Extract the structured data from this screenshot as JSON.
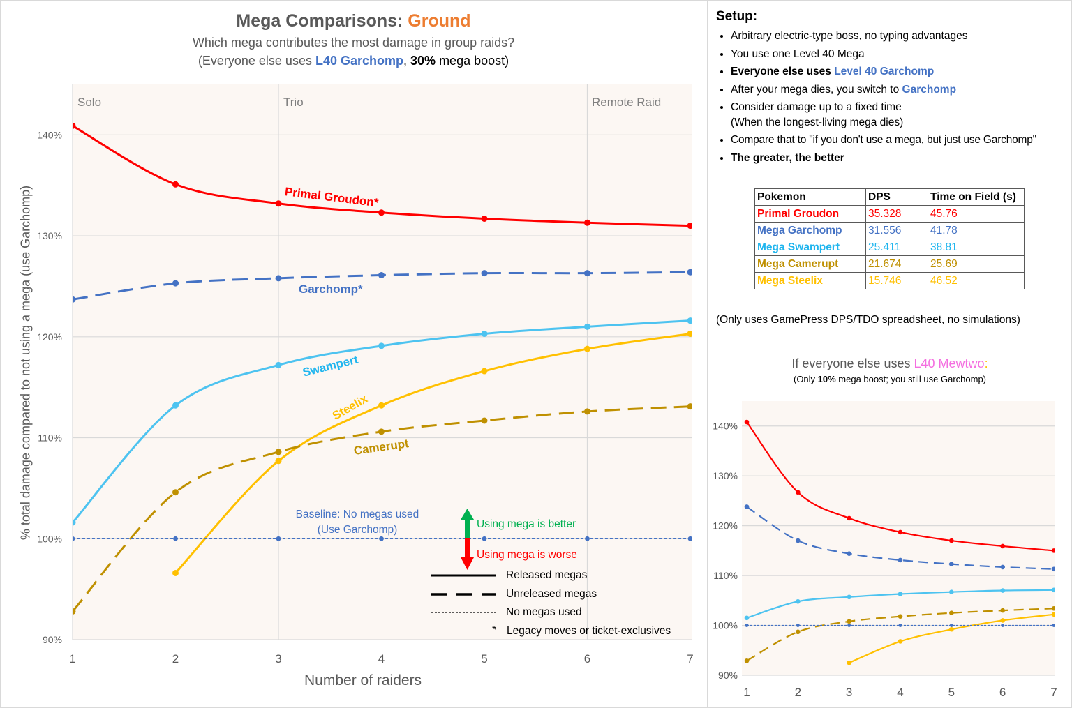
{
  "main": {
    "title_prefix": "Mega Comparisons: ",
    "title_type": "Ground",
    "subtitle": "Which mega contributes the most damage in group raids?",
    "subtitle2_a": "(Everyone else uses ",
    "subtitle2_b": "L40 Garchomp",
    "subtitle2_c": ", ",
    "subtitle2_d": "30%",
    "subtitle2_e": " mega boost)",
    "regions": [
      "Solo",
      "Trio",
      "Remote Raid"
    ],
    "baseline_note_1": "Baseline: No megas used",
    "baseline_note_2": "(Use Garchomp)",
    "better_label": "Using mega is better",
    "worse_label": "Using mega is worse",
    "legend": {
      "released": "Released megas",
      "unreleased": "Unreleased megas",
      "none": "No megas used",
      "asterisk": "*",
      "asterisk_note": "Legacy moves or ticket-exclusives"
    }
  },
  "setup": {
    "heading": "Setup:",
    "bullets": [
      "Arbitrary electric-type boss, no typing advantages",
      "You use one Level 40 Mega",
      "Everyone else uses ",
      "After your mega dies, you switch to ",
      "Consider damage up to a fixed time",
      "Compare that to \"if you don't use a mega, but just use Garchomp\"",
      "The greater, the better"
    ],
    "bullet3_highlight": "Level 40 Garchomp",
    "bullet4_highlight": "Garchomp",
    "bullet5_cont": "(When the longest-living mega dies)",
    "table": {
      "headers": [
        "Pokemon",
        "DPS",
        "Time on Field (s)"
      ],
      "rows": [
        {
          "name": "Primal Groudon",
          "dps": "35.328",
          "time": "45.76",
          "color": "#FF0000"
        },
        {
          "name": "Mega Garchomp",
          "dps": "31.556",
          "time": "41.78",
          "color": "#4472C4"
        },
        {
          "name": "Mega Swampert",
          "dps": "25.411",
          "time": "38.81",
          "color": "#1FB5EE"
        },
        {
          "name": "Mega Camerupt",
          "dps": "21.674",
          "time": "25.69",
          "color": "#BF9000"
        },
        {
          "name": "Mega Steelix",
          "dps": "15.746",
          "time": "46.52",
          "color": "#FFC000"
        }
      ]
    },
    "note": "(Only uses GamePress DPS/TDO spreadsheet, no simulations)"
  },
  "side": {
    "title_a": "If everyone else uses ",
    "title_b": "L40 Mewtwo",
    "title_c": ":",
    "sub_a": "(Only ",
    "sub_b": "10%",
    "sub_c": " mega boost; you still use Garchomp)"
  },
  "colors": {
    "title_accent": "#ED7D31",
    "garchomp_text": "#4472C4",
    "mewtwo_text": "#F46FE0",
    "better": "#00B050",
    "worse": "#FF0000",
    "plot_bg": "#FCF7F3"
  },
  "chart_data": [
    {
      "type": "line",
      "title": "Mega Comparisons: Ground",
      "xlabel": "Number of raiders",
      "ylabel": "% total damage compared to not using a mega (use Garchomp)",
      "x": [
        1,
        2,
        3,
        4,
        5,
        6,
        7
      ],
      "xticks": [
        "1",
        "2",
        "3",
        "4",
        "5",
        "6",
        "7"
      ],
      "ylim": [
        90,
        145
      ],
      "yticks": [
        90,
        100,
        110,
        120,
        130,
        140
      ],
      "ytick_labels": [
        "90%",
        "100%",
        "110%",
        "120%",
        "130%",
        "140%"
      ],
      "grid": true,
      "series": [
        {
          "name": "Primal Groudon*",
          "color": "#FF0000",
          "style": "solid",
          "values": [
            140.9,
            135.1,
            133.2,
            132.3,
            131.7,
            131.3,
            131.0
          ]
        },
        {
          "name": "Garchomp*",
          "color": "#4472C4",
          "style": "dashed",
          "values": [
            123.7,
            125.3,
            125.8,
            126.1,
            126.3,
            126.3,
            126.4
          ]
        },
        {
          "name": "Swampert",
          "color": "#4DC3F0",
          "style": "solid",
          "values": [
            101.6,
            113.2,
            117.2,
            119.1,
            120.3,
            121.0,
            121.6
          ]
        },
        {
          "name": "Steelix",
          "color": "#FFC000",
          "style": "solid",
          "values": [
            null,
            96.6,
            107.7,
            113.2,
            116.6,
            118.8,
            120.3
          ]
        },
        {
          "name": "Camerupt",
          "color": "#BF9000",
          "style": "dashed",
          "values": [
            92.8,
            104.6,
            108.6,
            110.6,
            111.7,
            112.6,
            113.1
          ]
        },
        {
          "name": "",
          "color": "#4472C4",
          "style": "dotted",
          "values": [
            100,
            100,
            100,
            100,
            100,
            100,
            100
          ]
        }
      ]
    },
    {
      "type": "line",
      "title": "If everyone else uses L40 Mewtwo:",
      "x": [
        1,
        2,
        3,
        4,
        5,
        6,
        7
      ],
      "xticks": [
        "1",
        "2",
        "3",
        "4",
        "5",
        "6",
        "7"
      ],
      "ylim": [
        90,
        145
      ],
      "yticks": [
        90,
        100,
        110,
        120,
        130,
        140
      ],
      "ytick_labels": [
        "90%",
        "100%",
        "110%",
        "120%",
        "130%",
        "140%"
      ],
      "grid": true,
      "series": [
        {
          "color": "#FF0000",
          "style": "solid",
          "values": [
            140.8,
            126.7,
            121.5,
            118.7,
            117.0,
            115.9,
            115.0
          ]
        },
        {
          "color": "#4472C4",
          "style": "dashed",
          "values": [
            123.8,
            117.0,
            114.4,
            113.1,
            112.3,
            111.7,
            111.3
          ]
        },
        {
          "color": "#4DC3F0",
          "style": "solid",
          "values": [
            101.5,
            104.8,
            105.7,
            106.3,
            106.7,
            107.0,
            107.1
          ]
        },
        {
          "color": "#FFC000",
          "style": "solid",
          "values": [
            null,
            null,
            92.5,
            96.8,
            99.2,
            101.0,
            102.2
          ]
        },
        {
          "color": "#BF9000",
          "style": "dashed",
          "values": [
            92.9,
            98.7,
            100.8,
            101.8,
            102.5,
            103.0,
            103.4
          ]
        },
        {
          "color": "#4472C4",
          "style": "dotted",
          "values": [
            100,
            100,
            100,
            100,
            100,
            100,
            100
          ]
        }
      ]
    }
  ]
}
